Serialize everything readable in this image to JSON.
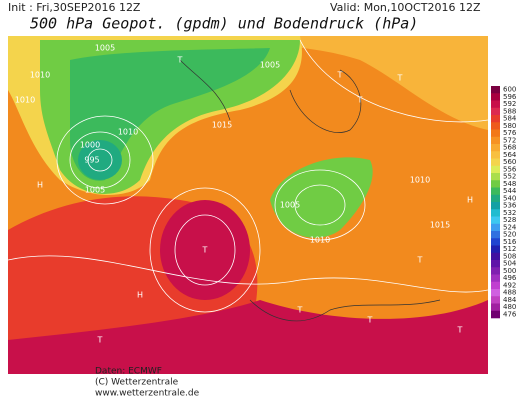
{
  "header": {
    "init": "Init : Fri,30SEP2016 12Z",
    "valid": "Valid: Mon,10OCT2016 12Z",
    "title": "500 hPa Geopot. (gpdm) und Bodendruck (hPa)"
  },
  "colorbar": {
    "levels": [
      600,
      596,
      592,
      588,
      584,
      580,
      576,
      572,
      568,
      564,
      560,
      556,
      552,
      548,
      544,
      540,
      536,
      532,
      528,
      524,
      520,
      516,
      512,
      508,
      504,
      500,
      496,
      492,
      488,
      484,
      480,
      476
    ],
    "colors": [
      "#7a0040",
      "#a80040",
      "#c8104a",
      "#dc2a50",
      "#e83c2c",
      "#ee5a1c",
      "#f27818",
      "#f69222",
      "#f8aa30",
      "#f8c040",
      "#f4d44c",
      "#dcec58",
      "#aade4c",
      "#70cc44",
      "#3cba5c",
      "#20aa80",
      "#14a0a4",
      "#20bcd0",
      "#3cc8f0",
      "#3c9ef0",
      "#3070e0",
      "#2044d0",
      "#2020b0",
      "#4010a0",
      "#6014a8",
      "#8020b0",
      "#a030c0",
      "#c040d0",
      "#d060e0",
      "#c040c0",
      "#a020a0",
      "#700070"
    ]
  },
  "map": {
    "labels": [
      "1010",
      "1005",
      "1000",
      "995",
      "1010",
      "1005",
      "H",
      "T",
      "T",
      "T",
      "T",
      "T",
      "H",
      "1010",
      "1005",
      "1010",
      "1015",
      "T",
      "T",
      "H",
      "T",
      "1010",
      "1005",
      "1015",
      "T",
      "T"
    ]
  },
  "footer": {
    "source": "Daten: ECMWF",
    "copyright": "(C) Wetterzentrale",
    "url": "www.wetterzentrale.de"
  }
}
